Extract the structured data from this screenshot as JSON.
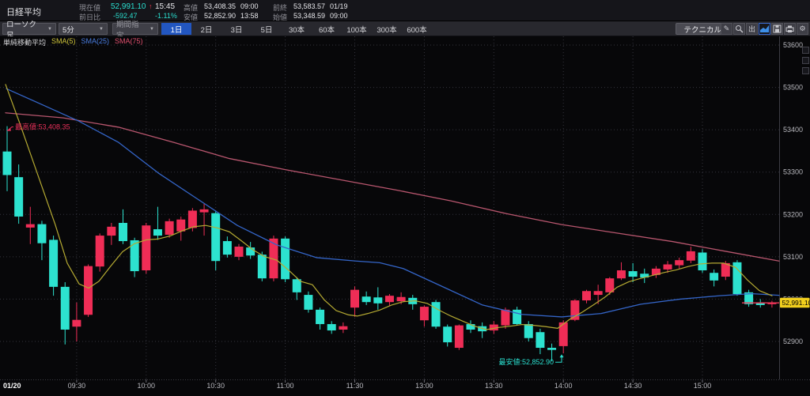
{
  "header": {
    "title": "日経平均",
    "current": {
      "label": "現在値",
      "value": "52,991.10",
      "arrow": "↑",
      "time": "15:45"
    },
    "change": {
      "label": "前日比",
      "value": "-592.47",
      "pct": "-1.11%"
    },
    "high": {
      "label": "高値",
      "value": "53,408.35",
      "time": "09:00"
    },
    "low": {
      "label": "安値",
      "value": "52,852.90",
      "time": "13:58"
    },
    "prev_close": {
      "label": "前終",
      "value": "53,583.57",
      "date": "01/19"
    },
    "open": {
      "label": "始値",
      "value": "53,348.59",
      "time": "09:00"
    }
  },
  "toolbar": {
    "chart_type_dropdown": "ローソク足",
    "interval_dropdown": "5分",
    "range_dropdown": "期間指定",
    "caret": "▼",
    "periods": [
      {
        "label": "1日",
        "active": true
      },
      {
        "label": "2日",
        "active": false
      },
      {
        "label": "3日",
        "active": false
      },
      {
        "label": "5日",
        "active": false
      },
      {
        "label": "30本",
        "active": false
      },
      {
        "label": "60本",
        "active": false
      },
      {
        "label": "100本",
        "active": false
      },
      {
        "label": "300本",
        "active": false
      },
      {
        "label": "600本",
        "active": false
      }
    ],
    "technical_label": "テクニカル",
    "icons": [
      {
        "name": "pencil-icon",
        "glyph": "✎"
      },
      {
        "name": "magnifier-icon",
        "glyph": "svg-magnifier"
      },
      {
        "name": "export-icon",
        "glyph": "出"
      },
      {
        "name": "area-chart-icon",
        "glyph": "svg-areachart",
        "active": true
      },
      {
        "name": "save-icon",
        "glyph": "svg-save"
      },
      {
        "name": "printer-icon",
        "glyph": "svg-printer"
      },
      {
        "name": "settings-icon",
        "glyph": "⚙"
      }
    ]
  },
  "legend": {
    "title": "単純移動平均",
    "items": [
      {
        "label": "SMA(5)",
        "color": "#cfc43a"
      },
      {
        "label": "SMA(25)",
        "color": "#4a7de0"
      },
      {
        "label": "SMA(75)",
        "color": "#e0506e"
      }
    ]
  },
  "chart_data": {
    "type": "candlestick",
    "title": "日経平均 5分足 1日",
    "interval": "5分",
    "ylim": [
      52830,
      53620
    ],
    "y_ticks": [
      53600,
      53500,
      53400,
      53300,
      53200,
      53100,
      53000,
      52900
    ],
    "x_ticks": [
      {
        "label": "01/20",
        "i": null,
        "bold": true
      },
      {
        "label": "09:30",
        "i": 6
      },
      {
        "label": "10:00",
        "i": 12
      },
      {
        "label": "10:30",
        "i": 18
      },
      {
        "label": "11:00",
        "i": 24
      },
      {
        "label": "11:30",
        "i": 30
      },
      {
        "label": "13:00",
        "i": 36
      },
      {
        "label": "13:30",
        "i": 42
      },
      {
        "label": "14:00",
        "i": 48
      },
      {
        "label": "14:30",
        "i": 54
      },
      {
        "label": "15:00",
        "i": 60
      }
    ],
    "colors": {
      "up": "#ef2d56",
      "down": "#2de2cf",
      "sma5": "#b5aa32",
      "sma25": "#3465c8",
      "sma75": "#b8566e",
      "grid": "#34343d",
      "axis_text": "#b9b9bf",
      "badge_bg": "#f2cf1d",
      "last_price_line": "#f23b5a"
    },
    "candles": [
      [
        53348.6,
        53408.4,
        53255,
        53293
      ],
      [
        53288,
        53318,
        53178,
        53195
      ],
      [
        53169,
        53218,
        53130,
        53177
      ],
      [
        53177,
        53185,
        53092,
        53132
      ],
      [
        53140,
        53150,
        53008,
        53029
      ],
      [
        53029,
        53040,
        52893,
        52928
      ],
      [
        52935,
        52992,
        52900,
        52951
      ],
      [
        52963,
        53082,
        52958,
        53078
      ],
      [
        53077,
        53155,
        53065,
        53150
      ],
      [
        53150,
        53180,
        53128,
        53171
      ],
      [
        53180,
        53212,
        53130,
        53137
      ],
      [
        53139,
        53145,
        53052,
        53066
      ],
      [
        53068,
        53180,
        53060,
        53174
      ],
      [
        53165,
        53218,
        53140,
        53150
      ],
      [
        53152,
        53190,
        53145,
        53184
      ],
      [
        53160,
        53195,
        53138,
        53188
      ],
      [
        53168,
        53215,
        53160,
        53209
      ],
      [
        53205,
        53225,
        53150,
        53212
      ],
      [
        53203,
        53208,
        53068,
        53090
      ],
      [
        53137,
        53148,
        53098,
        53105
      ],
      [
        53100,
        53130,
        53092,
        53124
      ],
      [
        53122,
        53135,
        53095,
        53103
      ],
      [
        53105,
        53112,
        53042,
        53049
      ],
      [
        53049,
        53150,
        53042,
        53143
      ],
      [
        53143,
        53148,
        53040,
        53047
      ],
      [
        53047,
        53052,
        52998,
        53016
      ],
      [
        53010,
        53018,
        52968,
        52975
      ],
      [
        52975,
        52980,
        52928,
        52941
      ],
      [
        52941,
        52948,
        52918,
        52926
      ],
      [
        52928,
        52945,
        52920,
        52936
      ],
      [
        52980,
        53030,
        52958,
        53022
      ],
      [
        53006,
        53018,
        52986,
        52993
      ],
      [
        53004,
        53028,
        52975,
        52990
      ],
      [
        52993,
        53012,
        52985,
        53008
      ],
      [
        52995,
        53016,
        52988,
        53005
      ],
      [
        53003,
        53010,
        52975,
        52988
      ],
      [
        52950,
        52985,
        52935,
        52982
      ],
      [
        52993,
        52998,
        52930,
        52935
      ],
      [
        52935,
        52940,
        52888,
        52898
      ],
      [
        52885,
        52940,
        52880,
        52938
      ],
      [
        52941,
        52950,
        52920,
        52928
      ],
      [
        52936,
        52945,
        52908,
        52924
      ],
      [
        52926,
        52948,
        52918,
        52940
      ],
      [
        52938,
        52980,
        52930,
        52975
      ],
      [
        52975,
        52982,
        52938,
        52941
      ],
      [
        52941,
        52948,
        52900,
        52908
      ],
      [
        52922,
        52930,
        52870,
        52885
      ],
      [
        52885,
        52895,
        52853,
        52880
      ],
      [
        52889,
        52950,
        52872,
        52945
      ],
      [
        52951,
        53000,
        52948,
        52997
      ],
      [
        52997,
        53022,
        52990,
        53019
      ],
      [
        53010,
        53034,
        52988,
        53019
      ],
      [
        53016,
        53052,
        53010,
        53049
      ],
      [
        53049,
        53087,
        53045,
        53068
      ],
      [
        53066,
        53085,
        53040,
        53053
      ],
      [
        53060,
        53072,
        53038,
        53051
      ],
      [
        53057,
        53078,
        53050,
        53072
      ],
      [
        53070,
        53090,
        53062,
        53082
      ],
      [
        53080,
        53098,
        53072,
        53092
      ],
      [
        53091,
        53124,
        53085,
        53113
      ],
      [
        53110,
        53118,
        53062,
        53068
      ],
      [
        53062,
        53070,
        53030,
        53044
      ],
      [
        53053,
        53090,
        53045,
        53085
      ],
      [
        53087,
        53092,
        53008,
        53012
      ],
      [
        53016,
        53022,
        52982,
        52988
      ],
      [
        52992,
        53000,
        52980,
        52986
      ],
      [
        52988,
        52996,
        52980,
        52991.1
      ]
    ],
    "sma5_points": [
      [
        7,
        53507
      ],
      [
        25,
        53415
      ],
      [
        40,
        53335
      ],
      [
        55,
        53255
      ],
      [
        70,
        53175
      ],
      [
        85,
        53085
      ],
      [
        100,
        53036
      ],
      [
        112,
        53026
      ],
      [
        125,
        53042
      ],
      [
        140,
        53078
      ],
      [
        155,
        53112
      ],
      [
        170,
        53131
      ],
      [
        185,
        53140
      ],
      [
        200,
        53142
      ],
      [
        215,
        53149
      ],
      [
        230,
        53161
      ],
      [
        245,
        53171
      ],
      [
        260,
        53174
      ],
      [
        275,
        53168
      ],
      [
        290,
        53159
      ],
      [
        305,
        53138
      ],
      [
        320,
        53116
      ],
      [
        335,
        53100
      ],
      [
        350,
        53092
      ],
      [
        365,
        53068
      ],
      [
        380,
        53042
      ],
      [
        395,
        53034
      ],
      [
        410,
        52998
      ],
      [
        425,
        52973
      ],
      [
        440,
        52963
      ],
      [
        452,
        52960
      ],
      [
        465,
        52966
      ],
      [
        480,
        52974
      ],
      [
        495,
        52986
      ],
      [
        510,
        52994
      ],
      [
        525,
        52996
      ],
      [
        540,
        52990
      ],
      [
        555,
        52974
      ],
      [
        570,
        52960
      ],
      [
        585,
        52948
      ],
      [
        600,
        52936
      ],
      [
        615,
        52928
      ],
      [
        630,
        52933
      ],
      [
        645,
        52936
      ],
      [
        660,
        52940
      ],
      [
        675,
        52938
      ],
      [
        690,
        52935
      ],
      [
        705,
        52931
      ],
      [
        720,
        52952
      ],
      [
        735,
        52968
      ],
      [
        750,
        52986
      ],
      [
        765,
        53005
      ],
      [
        780,
        53028
      ],
      [
        795,
        53041
      ],
      [
        810,
        53049
      ],
      [
        825,
        53056
      ],
      [
        840,
        53063
      ],
      [
        855,
        53069
      ],
      [
        870,
        53077
      ],
      [
        885,
        53083
      ],
      [
        900,
        53085
      ],
      [
        915,
        53085
      ],
      [
        930,
        53075
      ],
      [
        945,
        53045
      ],
      [
        960,
        53020
      ],
      [
        976,
        53008
      ]
    ],
    "sma25_points": [
      [
        8,
        53497
      ],
      [
        50,
        53462
      ],
      [
        100,
        53420
      ],
      [
        150,
        53370
      ],
      [
        200,
        53298
      ],
      [
        250,
        53236
      ],
      [
        300,
        53174
      ],
      [
        350,
        53128
      ],
      [
        400,
        53098
      ],
      [
        450,
        53090
      ],
      [
        480,
        53086
      ],
      [
        510,
        53072
      ],
      [
        560,
        53029
      ],
      [
        610,
        52986
      ],
      [
        660,
        52964
      ],
      [
        710,
        52958
      ],
      [
        760,
        52966
      ],
      [
        810,
        52988
      ],
      [
        860,
        53000
      ],
      [
        910,
        53008
      ],
      [
        950,
        53013
      ],
      [
        985,
        53009
      ]
    ],
    "sma75_points": [
      [
        7,
        53440
      ],
      [
        80,
        53428
      ],
      [
        150,
        53406
      ],
      [
        220,
        53370
      ],
      [
        290,
        53332
      ],
      [
        360,
        53306
      ],
      [
        430,
        53282
      ],
      [
        500,
        53258
      ],
      [
        570,
        53232
      ],
      [
        640,
        53202
      ],
      [
        710,
        53176
      ],
      [
        780,
        53156
      ],
      [
        850,
        53136
      ],
      [
        920,
        53112
      ],
      [
        985,
        53090
      ]
    ],
    "annotations": {
      "high": {
        "text": "最高値:53,408.35",
        "price": 53408.35
      },
      "low": {
        "text": "最安値:52,852.90",
        "price": 52852.9
      }
    },
    "last_price": {
      "value": "52,991.10",
      "price": 52991.1
    }
  }
}
